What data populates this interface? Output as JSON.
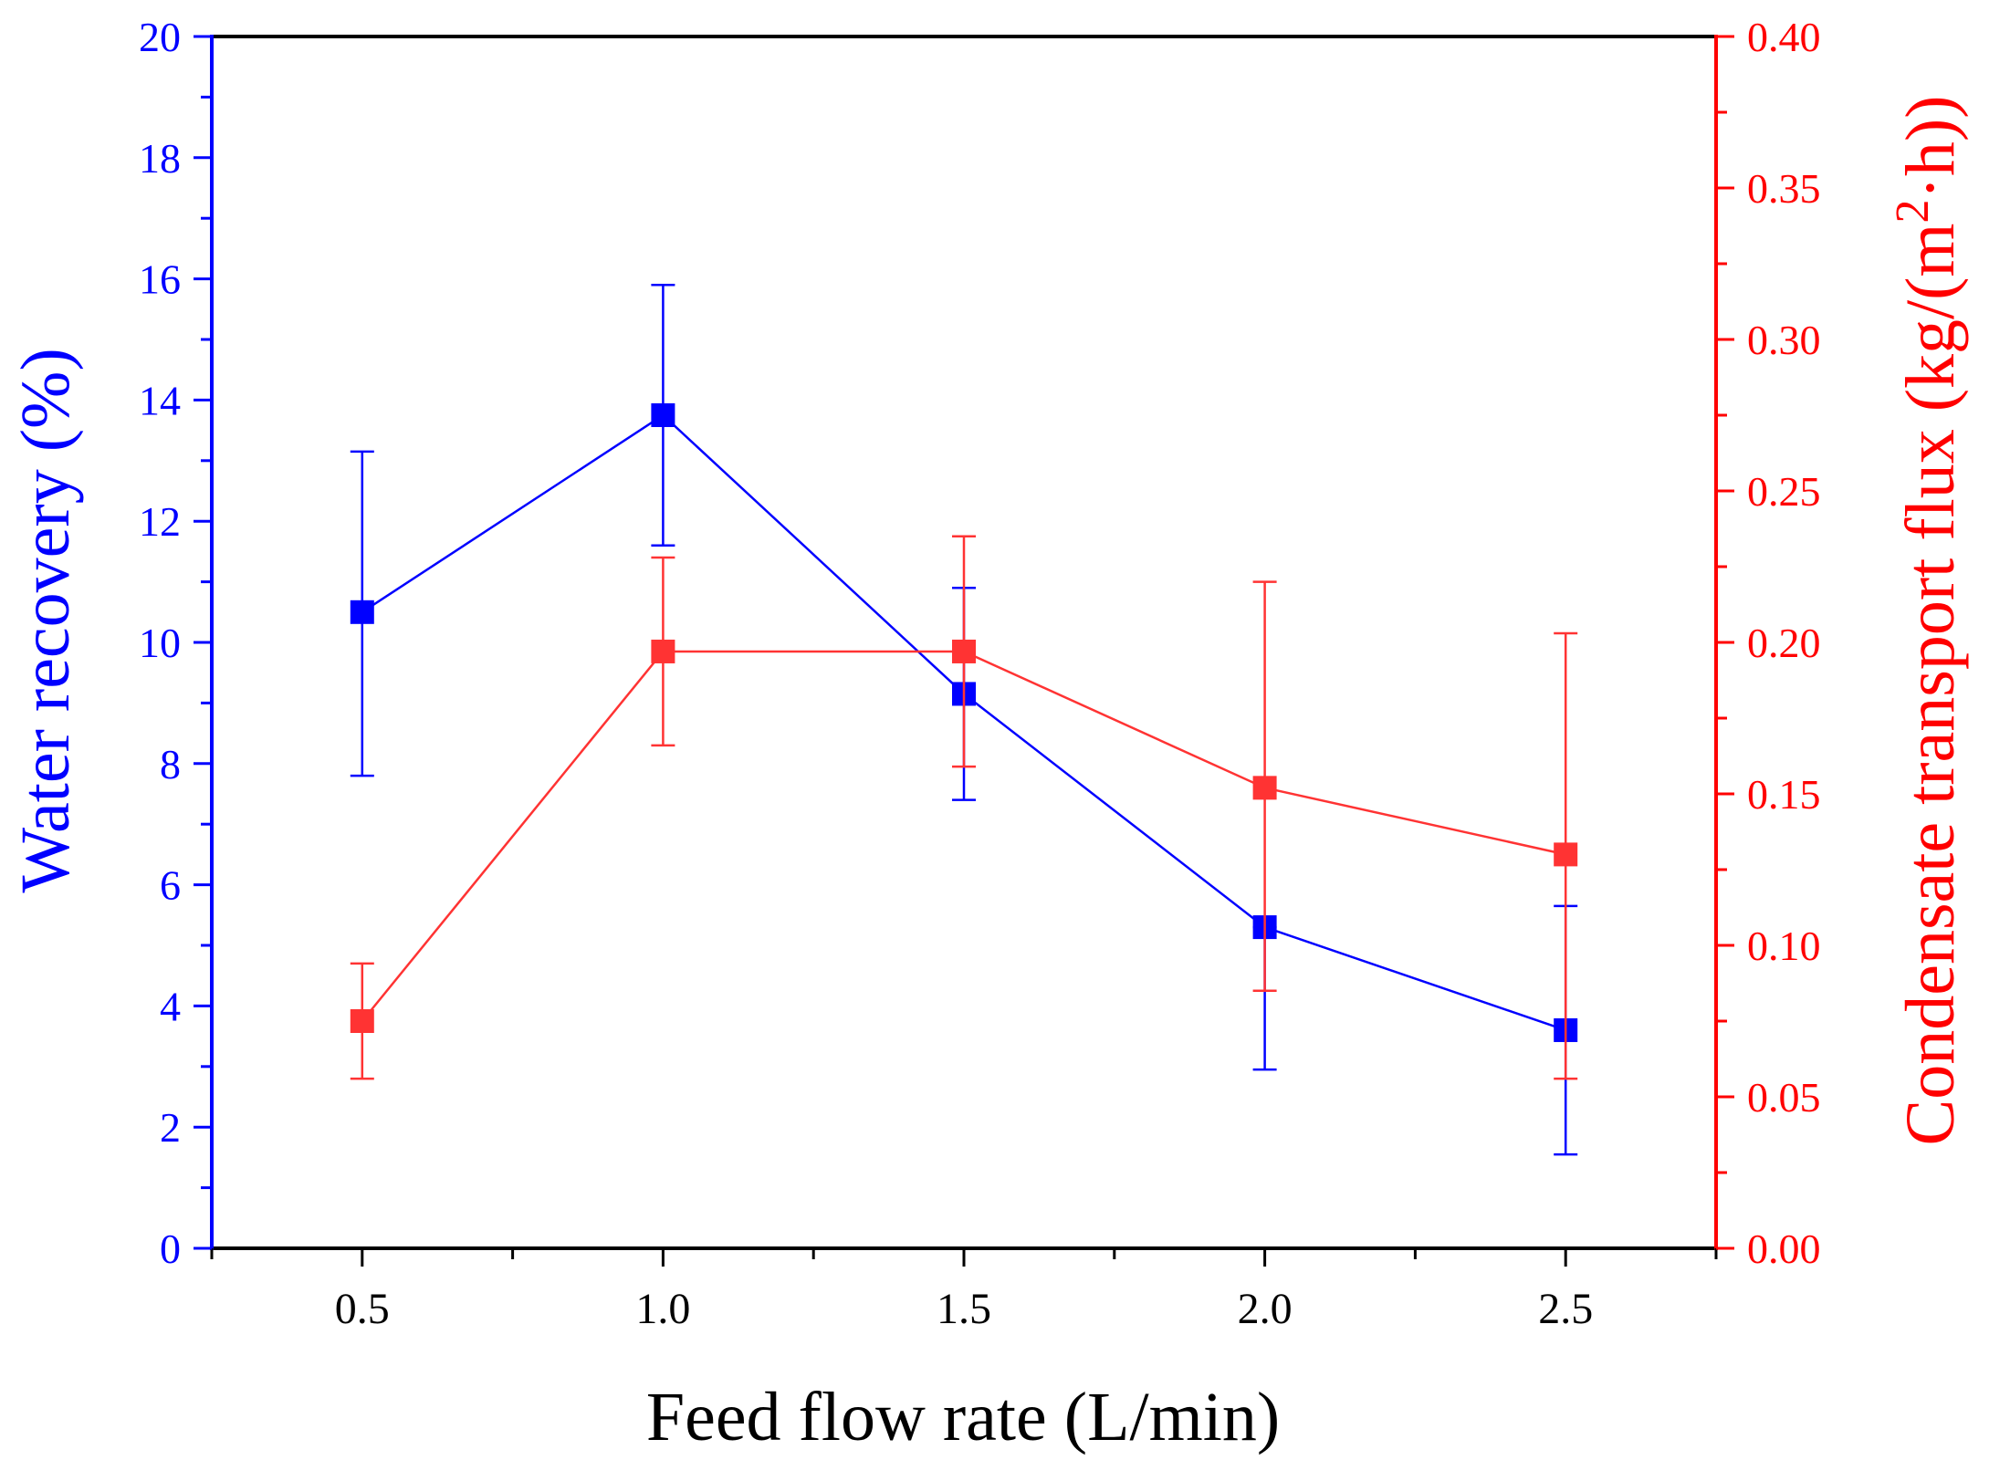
{
  "chart_data": {
    "type": "line",
    "x": [
      0.5,
      1.0,
      1.5,
      2.0,
      2.5
    ],
    "xlabel": "Feed flow rate (L/min)",
    "xlim": [
      0.25,
      2.75
    ],
    "x_ticks": [
      "0.5",
      "1.0",
      "1.5",
      "2.0",
      "2.5"
    ],
    "y_left": {
      "label": "Water recovery (%)",
      "lim": [
        0,
        20
      ],
      "ticks": [
        "0",
        "2",
        "4",
        "6",
        "8",
        "10",
        "12",
        "14",
        "16",
        "18",
        "20"
      ],
      "color": "#0000ff"
    },
    "y_right": {
      "label_main": "Condensate transport flux (kg/(m",
      "label_sup": "2",
      "label_tail": "·h))",
      "lim": [
        0,
        0.4
      ],
      "ticks": [
        "0.00",
        "0.05",
        "0.10",
        "0.15",
        "0.20",
        "0.25",
        "0.30",
        "0.35",
        "0.40"
      ],
      "color": "#ff0000"
    },
    "series": [
      {
        "name": "Water recovery",
        "axis": "left",
        "color": "#0000ff",
        "values": [
          10.5,
          13.75,
          9.15,
          5.3,
          3.6
        ],
        "err_low": [
          7.8,
          11.6,
          7.4,
          2.95,
          1.55
        ],
        "err_high": [
          13.15,
          15.9,
          10.9,
          5.3,
          5.65
        ]
      },
      {
        "name": "Condensate transport flux",
        "axis": "right",
        "color": "#ff3333",
        "values": [
          0.075,
          0.197,
          0.197,
          0.152,
          0.13
        ],
        "err_low": [
          0.056,
          0.166,
          0.159,
          0.085,
          0.056
        ],
        "err_high": [
          0.094,
          0.228,
          0.235,
          0.22,
          0.203
        ]
      }
    ]
  }
}
